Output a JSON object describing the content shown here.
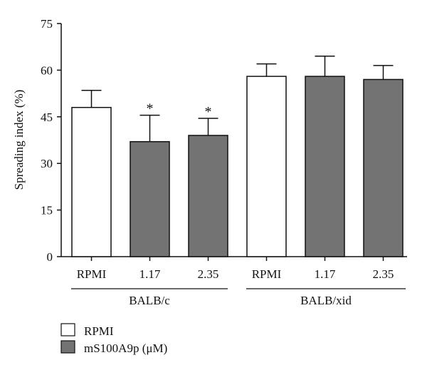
{
  "chart_data": {
    "type": "bar",
    "ylabel": "Spreading index (%)",
    "ylim": [
      0,
      75
    ],
    "yticks": [
      "0",
      "15",
      "30",
      "45",
      "60",
      "75"
    ],
    "grid": false,
    "groups": [
      "BALB/c",
      "BALB/xid"
    ],
    "bars": [
      {
        "label": "RPMI",
        "group": "BALB/c",
        "series": "RPMI",
        "value": 48,
        "error": 5.5,
        "significant": false
      },
      {
        "label": "1.17",
        "group": "BALB/c",
        "series": "mS100A9p",
        "value": 37,
        "error": 8.5,
        "significant": true
      },
      {
        "label": "2.35",
        "group": "BALB/c",
        "series": "mS100A9p",
        "value": 39,
        "error": 5.5,
        "significant": true
      },
      {
        "label": "RPMI",
        "group": "BALB/xid",
        "series": "RPMI",
        "value": 58,
        "error": 4,
        "significant": false
      },
      {
        "label": "1.17",
        "group": "BALB/xid",
        "series": "mS100A9p",
        "value": 58,
        "error": 6.5,
        "significant": false
      },
      {
        "label": "2.35",
        "group": "BALB/xid",
        "series": "mS100A9p",
        "value": 57,
        "error": 4.5,
        "significant": false
      }
    ],
    "significance_marker": "*",
    "legend": {
      "placement": "bottom-left",
      "entries": [
        {
          "name": "RPMI",
          "color": "#ffffff"
        },
        {
          "name": "mS100A9p (μM)",
          "color": "#737373"
        }
      ]
    }
  }
}
